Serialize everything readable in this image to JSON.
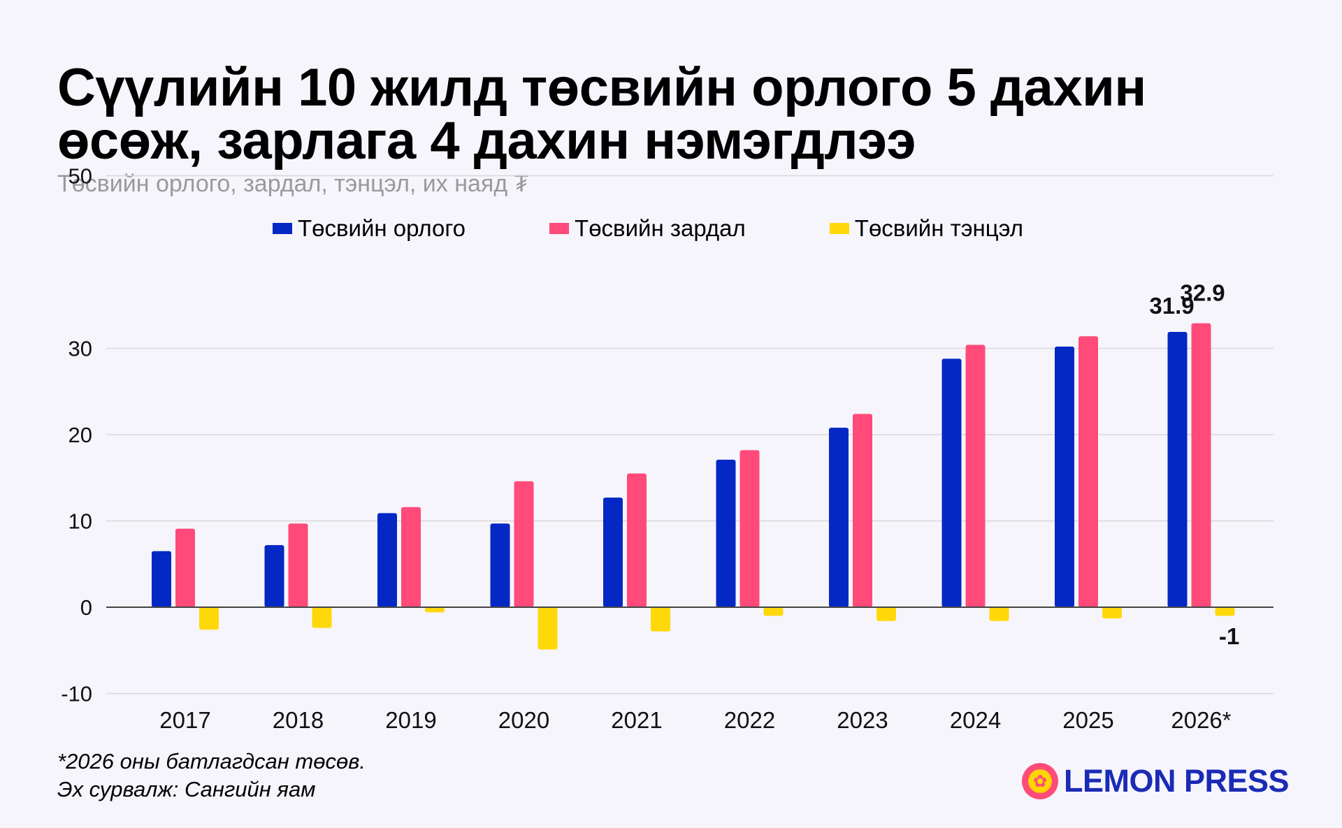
{
  "header": {
    "title_line1": "Сүүлийн 10 жилд төсвийн орлого 5 дахин",
    "title_line2": "өсөж, зарлага 4 дахин нэмэгдлээ",
    "subtitle": "Төсвийн орлого, зардал, тэнцэл, их наяд ₮"
  },
  "legend": {
    "revenue": "Төсвийн орлого",
    "expense": "Төсвийн зардал",
    "balance": "Төсвийн тэнцэл"
  },
  "colors": {
    "revenue": "#0328c4",
    "expense": "#ff4a7a",
    "balance": "#ffd80a",
    "grid": "#d7d7d7",
    "axis": "#444444"
  },
  "chart_data": {
    "type": "bar",
    "title": "Сүүлийн 10 жилд төсвийн орлого 5 дахин өсөж, зарлага 4 дахин нэмэгдлээ",
    "ylabel": "Төсвийн орлого, зардал, тэнцэл, их наяд ₮",
    "xlabel": "",
    "categories": [
      "2017",
      "2018",
      "2019",
      "2020",
      "2021",
      "2022",
      "2023",
      "2024",
      "2025",
      "2026*"
    ],
    "ylim": [
      -10,
      50
    ],
    "yticks": [
      -10,
      0,
      10,
      20,
      30,
      50
    ],
    "yticks_labels": [
      "-10",
      "0",
      "10",
      "20",
      "30",
      "50"
    ],
    "grid": true,
    "legend_position": "top",
    "series": [
      {
        "name": "Төсвийн орлого",
        "key": "revenue",
        "values": [
          6.5,
          7.2,
          10.9,
          9.7,
          12.7,
          17.1,
          20.8,
          28.8,
          30.2,
          31.9
        ]
      },
      {
        "name": "Төсвийн зардал",
        "key": "expense",
        "values": [
          9.1,
          9.7,
          11.6,
          14.6,
          15.5,
          18.2,
          22.4,
          30.4,
          31.4,
          32.9
        ]
      },
      {
        "name": "Төсвийн тэнцэл",
        "key": "balance",
        "values": [
          -2.6,
          -2.4,
          -0.6,
          -4.9,
          -2.8,
          -1.0,
          -1.6,
          -1.6,
          -1.3,
          -1.0
        ]
      }
    ],
    "annotations": [
      {
        "series": "revenue",
        "category": "2026*",
        "text": "31.9"
      },
      {
        "series": "expense",
        "category": "2026*",
        "text": "32.9"
      },
      {
        "series": "balance",
        "category": "2026*",
        "text": "-1"
      }
    ]
  },
  "footer": {
    "note": "*2026 оны батлагдсан төсөв.",
    "source": "Эх сурвалж: Сангийн яам",
    "brand": "LEMON PRESS"
  }
}
